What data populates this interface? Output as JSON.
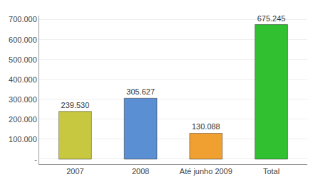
{
  "chart_data": {
    "type": "bar",
    "categories": [
      "2007",
      "2008",
      "Até junho 2009",
      "Total"
    ],
    "values": [
      239530,
      305627,
      130088,
      675245
    ],
    "value_labels": [
      "239.530",
      "305.627",
      "130.088",
      "675.245"
    ],
    "colors": [
      "#c8c840",
      "#5b8fd4",
      "#f0a030",
      "#30c030"
    ],
    "ylim": [
      -25000,
      720000
    ],
    "yticks": [
      {
        "value": 0,
        "label": "-"
      },
      {
        "value": 100000,
        "label": "100.000"
      },
      {
        "value": 200000,
        "label": "200.000"
      },
      {
        "value": 300000,
        "label": "300.000"
      },
      {
        "value": 400000,
        "label": "400.000"
      },
      {
        "value": 500000,
        "label": "500.000"
      },
      {
        "value": 600000,
        "label": "600.000"
      },
      {
        "value": 700000,
        "label": "700.000"
      }
    ],
    "grid": true,
    "data_labels": true
  }
}
